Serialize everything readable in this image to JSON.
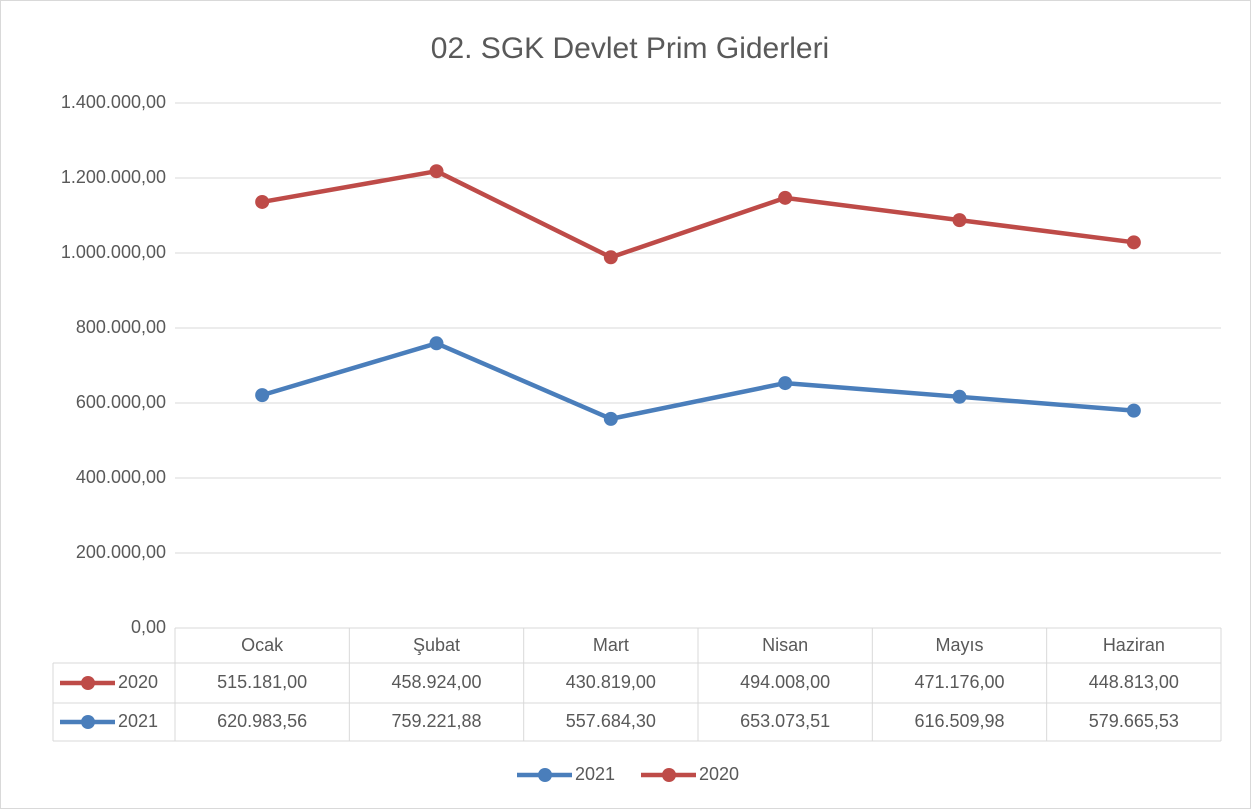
{
  "chart_data": {
    "type": "line",
    "stacked": true,
    "title": "02. SGK Devlet Prim Giderleri",
    "categories": [
      "Ocak",
      "Şubat",
      "Mart",
      "Nisan",
      "Mayıs",
      "Haziran"
    ],
    "series": [
      {
        "name": "2021",
        "color": "#4a7ebb",
        "values": [
          620983.56,
          759221.88,
          557684.3,
          653073.51,
          616509.98,
          579665.53
        ],
        "value_labels": [
          "620.983,56",
          "759.221,88",
          "557.684,30",
          "653.073,51",
          "616.509,98",
          "579.665,53"
        ]
      },
      {
        "name": "2020",
        "color": "#be4b48",
        "values": [
          515181,
          458924,
          430819,
          494008,
          471176,
          448813
        ],
        "value_labels": [
          "515.181,00",
          "458.924,00",
          "430.819,00",
          "494.008,00",
          "471.176,00",
          "448.813,00"
        ]
      }
    ],
    "ylim": [
      0,
      1400000
    ],
    "yticks": [
      {
        "value": 0,
        "label": "0,00"
      },
      {
        "value": 200000,
        "label": "200.000,00"
      },
      {
        "value": 400000,
        "label": "400.000,00"
      },
      {
        "value": 600000,
        "label": "600.000,00"
      },
      {
        "value": 800000,
        "label": "800.000,00"
      },
      {
        "value": 1000000,
        "label": "1.000.000,00"
      },
      {
        "value": 1200000,
        "label": "1.200.000,00"
      },
      {
        "value": 1400000,
        "label": "1.400.000,00"
      }
    ],
    "grid": true,
    "legend": "bottom",
    "data_table": true
  }
}
